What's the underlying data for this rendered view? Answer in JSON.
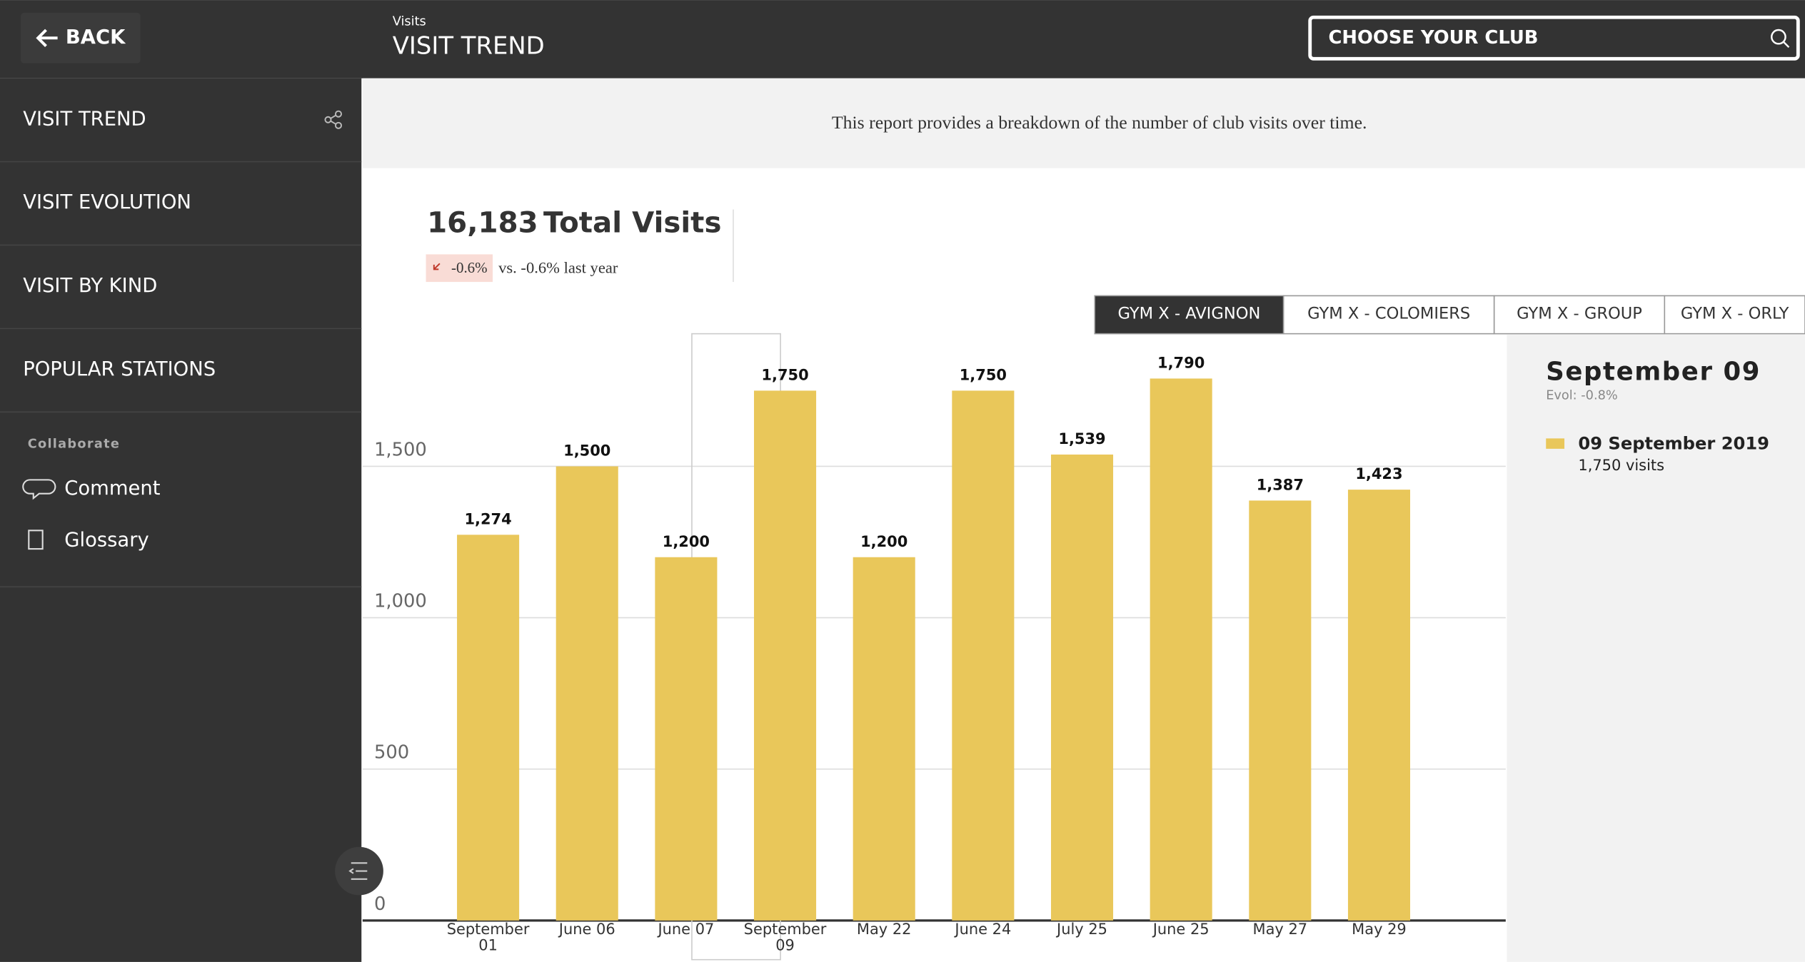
{
  "header": {
    "back": "BACK",
    "section": "Visits",
    "title": "VISIT TREND",
    "club_search": "CHOOSE YOUR CLUB"
  },
  "sidebar": {
    "menu": [
      "VISIT TREND",
      "VISIT EVOLUTION",
      "VISIT BY KIND",
      "POPULAR STATIONS"
    ],
    "collaborate_heading": "Collaborate",
    "collaborate": [
      "Comment",
      "Glossary"
    ]
  },
  "report": {
    "description": "This report provides a breakdown of the number of club visits over time.",
    "total_visits": {
      "value": "16,183",
      "label": "Total Visits",
      "change": "-0.6%",
      "comparison": "vs. -0.6% last year"
    },
    "tabs": [
      "GYM X - AVIGNON",
      "GYM X - COLOMIERS",
      "GYM X - GROUP",
      "GYM X - ORLY"
    ]
  },
  "chart_data": {
    "type": "bar",
    "categories": [
      "September 01",
      "June 06",
      "June 07",
      "September 09",
      "May 22",
      "June 24",
      "July 25",
      "June 25",
      "May 27",
      "May 29"
    ],
    "values": [
      1274,
      1500,
      1200,
      1750,
      1200,
      1750,
      1539,
      1790,
      1387,
      1423
    ],
    "value_labels": [
      "1,274",
      "1,500",
      "1,200",
      "1,750",
      "1,200",
      "1,750",
      "1,539",
      "1,790",
      "1,387",
      "1,423"
    ],
    "color": "#e9c75a",
    "ylim": [
      0,
      1900
    ],
    "yticks": [
      0,
      500,
      {
        "value": 1000,
        "label": "1,000"
      },
      {
        "value": 1500,
        "label": "1,500"
      }
    ],
    "grid": true
  },
  "detail": {
    "title": "September 09",
    "evol": "Evol: -0.8%",
    "legend_label": "09 September 2019",
    "visits": "1,750 visits"
  }
}
